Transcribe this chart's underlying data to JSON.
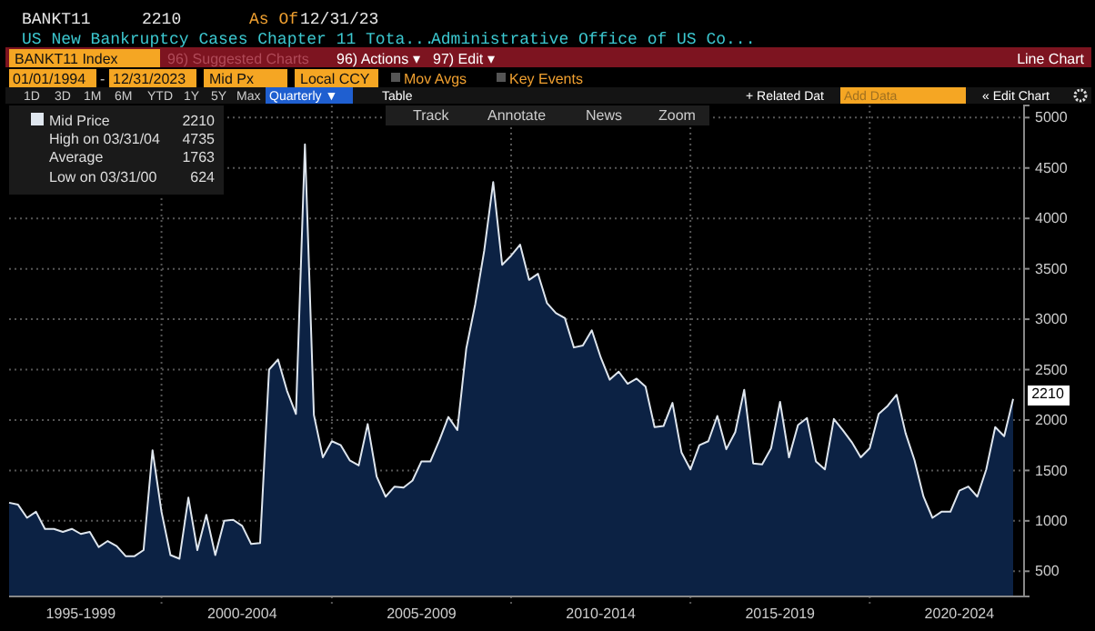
{
  "chart_data": {
    "type": "area",
    "title": "US New Bankruptcy Cases Chapter 11 Tota...",
    "subtitle": "Administrative Office of US Co...",
    "categories": [
      null,
      null,
      null,
      null,
      null,
      null,
      null,
      null,
      "1995-1999",
      null,
      null,
      null,
      null,
      null,
      null,
      null,
      null,
      null,
      null,
      null,
      null,
      null,
      null,
      null,
      null,
      null,
      "2000-2004",
      null,
      null,
      null,
      null,
      null,
      null,
      null,
      null,
      null,
      null,
      null,
      null,
      null,
      null,
      null,
      null,
      null,
      null,
      null,
      "2005-2009",
      null,
      null,
      null,
      null,
      null,
      null,
      null,
      null,
      null,
      null,
      null,
      null,
      null,
      null,
      null,
      null,
      null,
      null,
      null,
      "2010-2014",
      null,
      null,
      null,
      null,
      null,
      null,
      null,
      null,
      null,
      null,
      null,
      null,
      null,
      null,
      null,
      null,
      null,
      null,
      null,
      "2015-2019",
      null,
      null,
      null,
      null,
      null,
      null,
      null,
      null,
      null,
      null,
      null,
      null,
      null,
      null,
      null,
      null,
      null,
      null,
      null,
      "2020-2024",
      null,
      null,
      null,
      null,
      null,
      null
    ],
    "series": [
      {
        "name": "Mid Price",
        "color": "#dfe6ee",
        "values": [
          1180,
          1160,
          1030,
          1090,
          920,
          920,
          890,
          920,
          870,
          890,
          740,
          800,
          750,
          650,
          650,
          710,
          1700,
          1090,
          660,
          624,
          1230,
          710,
          1060,
          660,
          1000,
          1010,
          950,
          770,
          780,
          2500,
          2600,
          2290,
          2060,
          4735,
          2050,
          1630,
          1790,
          1750,
          1600,
          1550,
          1960,
          1440,
          1240,
          1340,
          1330,
          1400,
          1590,
          1590,
          1800,
          2030,
          1900,
          2710,
          3150,
          3680,
          4360,
          3540,
          3630,
          3740,
          3390,
          3450,
          3160,
          3060,
          3010,
          2720,
          2740,
          2890,
          2620,
          2400,
          2480,
          2360,
          2410,
          2330,
          1930,
          1940,
          2170,
          1680,
          1510,
          1750,
          1790,
          2040,
          1710,
          1880,
          2300,
          1570,
          1560,
          1720,
          2180,
          1630,
          1950,
          2020,
          1590,
          1510,
          2010,
          1900,
          1780,
          1630,
          1720,
          2060,
          2140,
          2250,
          1870,
          1600,
          1240,
          1030,
          1090,
          1090,
          1300,
          1340,
          1240,
          1510,
          1930,
          1840,
          2210
        ]
      }
    ],
    "ylim": [
      250,
      5120
    ],
    "yticks": [
      500,
      1000,
      1500,
      2000,
      2500,
      3000,
      3500,
      4000,
      4500,
      5000
    ],
    "grid": true,
    "legend": "top left",
    "annotations": [
      "BANKT11",
      "2210",
      "As Of",
      "12/31/23",
      "BANKT11 Index",
      "96) Suggested Charts",
      "96) Actions ▾",
      "97) Edit ▾",
      "Line Chart",
      "01/01/1994",
      "-",
      "12/31/2023",
      "Mid Px",
      "Local CCY",
      "Mov Avgs",
      "Key Events",
      "1D",
      "3D",
      "1M",
      "6M",
      "YTD",
      "1Y",
      "5Y",
      "Max",
      "Quarterly ▼",
      "Table",
      "+ Related Dat",
      "Add Data",
      "« Edit Chart",
      "Track",
      "Annotate",
      "News",
      "Zoom",
      "2210",
      "High on 03/31/04",
      "4735",
      "Average",
      "1763",
      "Low on 03/31/00",
      "624",
      "2210"
    ]
  }
}
